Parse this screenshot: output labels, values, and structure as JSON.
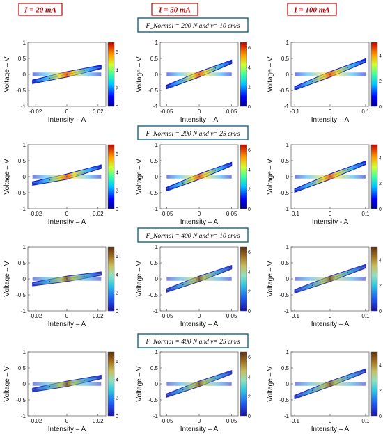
{
  "headers": [
    {
      "label": "I = 20 mA",
      "border_color": "#c00000"
    },
    {
      "label": "I = 50 mA",
      "border_color": "#c00000"
    },
    {
      "label": "I = 100 mA",
      "border_color": "#c00000"
    }
  ],
  "conditions": [
    {
      "label": "F_Normal = 200 N  and  v= 10 cm/s",
      "border_color": "#1f6f8b"
    },
    {
      "label": "F_Normal = 200 N  and  v= 25 cm/s",
      "border_color": "#1f6f8b"
    },
    {
      "label": "F_Normal = 400 N  and  v= 10 cm/s",
      "border_color": "#1f6f8b"
    },
    {
      "label": "F_Normal = 400 N  and  v= 25 cm/s",
      "border_color": "#1f6f8b"
    }
  ],
  "chart_data": [
    {
      "type": "line",
      "row": 1,
      "col": 1,
      "xlabel": "Intensity – A",
      "ylabel": "Voltage – V",
      "xlim": [
        -0.025,
        0.025
      ],
      "ylim": [
        -1,
        1
      ],
      "xticks": [
        "-0.02",
        "0",
        "0.02"
      ],
      "yticks": [
        "1",
        "0.5",
        "0",
        "-0.5",
        "-1"
      ],
      "series": [
        {
          "x": [
            -0.022,
            -0.011,
            0,
            0.011,
            0.022
          ],
          "y": [
            -0.22,
            -0.12,
            0,
            0.12,
            0.22
          ]
        }
      ],
      "colorbar": {
        "ticks": [
          "6",
          "4",
          "2",
          "0"
        ],
        "range": [
          0,
          7
        ],
        "colormap": "jet"
      }
    },
    {
      "type": "line",
      "row": 1,
      "col": 2,
      "xlabel": "Intensity – A",
      "ylabel": "Voltage – V",
      "xlim": [
        -0.06,
        0.06
      ],
      "ylim": [
        -1,
        1
      ],
      "xticks": [
        "-0.05",
        "0",
        "0.05"
      ],
      "yticks": [
        "1",
        "0.5",
        "0",
        "-0.5",
        "-1"
      ],
      "series": [
        {
          "x": [
            -0.05,
            -0.025,
            0,
            0.025,
            0.05
          ],
          "y": [
            -0.38,
            -0.2,
            0,
            0.2,
            0.38
          ]
        }
      ],
      "colorbar": {
        "ticks": [
          "6",
          "4",
          "2",
          "0"
        ],
        "range": [
          0,
          6.5
        ],
        "colormap": "jet"
      }
    },
    {
      "type": "line",
      "row": 1,
      "col": 3,
      "xlabel": "Intensity – A",
      "ylabel": "Voltage – V",
      "xlim": [
        -0.11,
        0.11
      ],
      "ylim": [
        -1,
        1
      ],
      "xticks": [
        "-0.1",
        "0",
        "0.1"
      ],
      "yticks": [
        "1",
        "0.5",
        "0",
        "-0.5",
        "-1"
      ],
      "series": [
        {
          "x": [
            -0.1,
            -0.05,
            0,
            0.05,
            0.1
          ],
          "y": [
            -0.42,
            -0.22,
            0,
            0.22,
            0.42
          ]
        }
      ],
      "colorbar": {
        "ticks": [
          "4",
          "2",
          "0"
        ],
        "range": [
          0,
          5
        ],
        "colormap": "jet"
      }
    },
    {
      "type": "line",
      "row": 2,
      "col": 1,
      "xlabel": "Intensity – A",
      "ylabel": "Voltage – V",
      "xlim": [
        -0.025,
        0.025
      ],
      "ylim": [
        -1,
        1
      ],
      "xticks": [
        "-0.02",
        "0",
        "0.02"
      ],
      "yticks": [
        "1",
        "0.5",
        "0",
        "-0.5",
        "-1"
      ],
      "series": [
        {
          "x": [
            -0.022,
            -0.011,
            0,
            0.011,
            0.022
          ],
          "y": [
            -0.2,
            -0.1,
            0,
            0.12,
            0.3
          ]
        }
      ],
      "colorbar": {
        "ticks": [
          "6",
          "4",
          "2",
          "0"
        ],
        "range": [
          0,
          7
        ],
        "colormap": "jet"
      }
    },
    {
      "type": "line",
      "row": 2,
      "col": 2,
      "xlabel": "Intensity – A",
      "ylabel": "Voltage – V",
      "xlim": [
        -0.06,
        0.06
      ],
      "ylim": [
        -1,
        1
      ],
      "xticks": [
        "-0.05",
        "0",
        "0.05"
      ],
      "yticks": [
        "1",
        "0.5",
        "0",
        "-0.5",
        "-1"
      ],
      "series": [
        {
          "x": [
            -0.05,
            -0.025,
            0,
            0.025,
            0.05
          ],
          "y": [
            -0.38,
            -0.2,
            0,
            0.2,
            0.38
          ]
        }
      ],
      "colorbar": {
        "ticks": [
          "6",
          "4",
          "2",
          "0"
        ],
        "range": [
          0,
          6.5
        ],
        "colormap": "jet"
      }
    },
    {
      "type": "line",
      "row": 2,
      "col": 3,
      "xlabel": "Intensity - A",
      "ylabel": "Voltage – V",
      "xlim": [
        -0.11,
        0.11
      ],
      "ylim": [
        -1,
        1
      ],
      "xticks": [
        "-0.1",
        "0",
        "0.1"
      ],
      "yticks": [
        "1",
        "0.5",
        "0",
        "-0.5",
        "-1"
      ],
      "series": [
        {
          "x": [
            -0.1,
            -0.05,
            0,
            0.05,
            0.1
          ],
          "y": [
            -0.42,
            -0.22,
            0,
            0.22,
            0.42
          ]
        }
      ],
      "colorbar": {
        "ticks": [
          "4",
          "2",
          "0"
        ],
        "range": [
          0,
          5
        ],
        "colormap": "jet"
      }
    },
    {
      "type": "line",
      "row": 3,
      "col": 1,
      "xlabel": "Intensity – A",
      "ylabel": "Voltage – V",
      "xlim": [
        -0.025,
        0.025
      ],
      "ylim": [
        -1,
        1
      ],
      "xticks": [
        "-0.02",
        "0",
        "0.02"
      ],
      "yticks": [
        "1",
        "0.5",
        "0",
        "-0.5",
        "-1"
      ],
      "series": [
        {
          "x": [
            -0.022,
            -0.011,
            0,
            0.011,
            0.022
          ],
          "y": [
            -0.15,
            -0.08,
            0,
            0.08,
            0.15
          ]
        }
      ],
      "colorbar": {
        "ticks": [
          "6",
          "4",
          "2",
          "0"
        ],
        "range": [
          0,
          7
        ],
        "colormap": "parula"
      }
    },
    {
      "type": "line",
      "row": 3,
      "col": 2,
      "xlabel": "Intensity – A",
      "ylabel": "Voltage – V",
      "xlim": [
        -0.06,
        0.06
      ],
      "ylim": [
        -1,
        1
      ],
      "xticks": [
        "-0.05",
        "0",
        "0.05"
      ],
      "yticks": [
        "1",
        "0.5",
        "0",
        "-0.5",
        "-1"
      ],
      "series": [
        {
          "x": [
            -0.05,
            -0.025,
            0,
            0.025,
            0.05
          ],
          "y": [
            -0.35,
            -0.18,
            0,
            0.18,
            0.35
          ]
        }
      ],
      "colorbar": {
        "ticks": [
          "6",
          "4",
          "2",
          "0"
        ],
        "range": [
          0,
          6.5
        ],
        "colormap": "parula"
      }
    },
    {
      "type": "line",
      "row": 3,
      "col": 3,
      "xlabel": "Intensity – A",
      "ylabel": "Voltage – V",
      "xlim": [
        -0.11,
        0.11
      ],
      "ylim": [
        -1,
        1
      ],
      "xticks": [
        "-0.1",
        "0",
        "0.1"
      ],
      "yticks": [
        "1",
        "0.5",
        "0",
        "-0.5",
        "-1"
      ],
      "series": [
        {
          "x": [
            -0.1,
            -0.05,
            0,
            0.05,
            0.1
          ],
          "y": [
            -0.38,
            -0.2,
            0,
            0.2,
            0.38
          ]
        }
      ],
      "colorbar": {
        "ticks": [
          "4",
          "2",
          "0"
        ],
        "range": [
          0,
          5
        ],
        "colormap": "parula"
      }
    },
    {
      "type": "line",
      "row": 4,
      "col": 1,
      "xlabel": "Intensity – A",
      "ylabel": "Voltage – V",
      "xlim": [
        -0.025,
        0.025
      ],
      "ylim": [
        -1,
        1
      ],
      "xticks": [
        "-0.02",
        "0",
        "0.02"
      ],
      "yticks": [
        "1",
        "0.5",
        "0",
        "-0.5",
        "-1"
      ],
      "series": [
        {
          "x": [
            -0.022,
            -0.011,
            0,
            0.011,
            0.022
          ],
          "y": [
            -0.18,
            -0.08,
            0,
            0.1,
            0.2
          ]
        }
      ],
      "colorbar": {
        "ticks": [
          "6",
          "4",
          "2",
          "0"
        ],
        "range": [
          0,
          7
        ],
        "colormap": "parula"
      }
    },
    {
      "type": "line",
      "row": 4,
      "col": 2,
      "xlabel": "Intensity – A",
      "ylabel": "Voltage – V",
      "xlim": [
        -0.06,
        0.06
      ],
      "ylim": [
        -1,
        1
      ],
      "xticks": [
        "-0.05",
        "0",
        "0.05"
      ],
      "yticks": [
        "1",
        "0.5",
        "0",
        "-0.5",
        "-1"
      ],
      "series": [
        {
          "x": [
            -0.05,
            -0.025,
            0,
            0.025,
            0.05
          ],
          "y": [
            -0.35,
            -0.18,
            0,
            0.18,
            0.35
          ]
        }
      ],
      "colorbar": {
        "ticks": [
          "6",
          "4",
          "2",
          "0"
        ],
        "range": [
          0,
          6.5
        ],
        "colormap": "parula"
      }
    },
    {
      "type": "line",
      "row": 4,
      "col": 3,
      "xlabel": "Intensity – A",
      "ylabel": "Voltage – V",
      "xlim": [
        -0.11,
        0.11
      ],
      "ylim": [
        -1,
        1
      ],
      "xticks": [
        "-0.1",
        "0",
        "0.1"
      ],
      "yticks": [
        "1",
        "0.5",
        "0",
        "-0.5",
        "-1"
      ],
      "series": [
        {
          "x": [
            -0.1,
            -0.05,
            0,
            0.05,
            0.1
          ],
          "y": [
            -0.4,
            -0.2,
            0,
            0.2,
            0.4
          ]
        }
      ],
      "colorbar": {
        "ticks": [
          "4",
          "2",
          "0"
        ],
        "range": [
          0,
          5
        ],
        "colormap": "parula"
      }
    }
  ]
}
